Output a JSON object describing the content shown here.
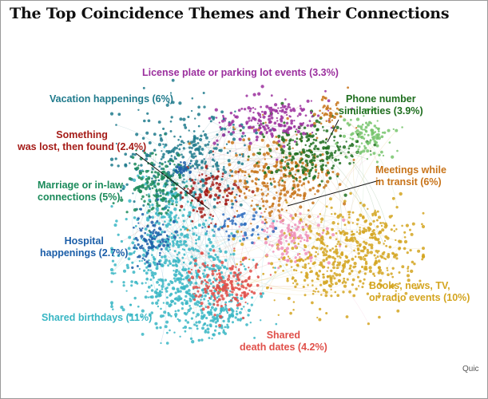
{
  "title": "The Top Coincidence Themes and Their Connections",
  "credit": "Quic",
  "themes": [
    {
      "key": "license",
      "lines": [
        "License plate or parking lot events (3.3%)"
      ],
      "color": "#9b2f9e",
      "align": "left"
    },
    {
      "key": "vacation",
      "lines": [
        "Vacation happenings (6%)"
      ],
      "color": "#1f7a8c",
      "align": "left"
    },
    {
      "key": "phone",
      "lines": [
        "Phone number",
        "similarities (3.9%)"
      ],
      "color": "#1e6e1e",
      "align": "center"
    },
    {
      "key": "lost",
      "lines": [
        "Something",
        "was lost, then found (2.4%)"
      ],
      "color": "#a51c18",
      "align": "center"
    },
    {
      "key": "meetings",
      "lines": [
        "Meetings while",
        "in transit (6%)"
      ],
      "color": "#c8741a",
      "align": "left"
    },
    {
      "key": "marriage",
      "lines": [
        "Marriage or in-law",
        "connections (5%)"
      ],
      "color": "#1a8a5a",
      "align": "left"
    },
    {
      "key": "hospital",
      "lines": [
        "Hospital",
        "happenings (2.7%)"
      ],
      "color": "#1b5ea8",
      "align": "center"
    },
    {
      "key": "books",
      "lines": [
        "Books, news, TV,",
        "or radio events (10%)"
      ],
      "color": "#d4a520",
      "align": "left"
    },
    {
      "key": "birthdays",
      "lines": [
        "Shared birthdays (11%)"
      ],
      "color": "#38b6c4",
      "align": "left"
    },
    {
      "key": "death",
      "lines": [
        "Shared",
        "death dates (4.2%)"
      ],
      "color": "#e0504a",
      "align": "center"
    }
  ],
  "extra_colors": [
    "#f08fb8",
    "#2f6fc0",
    "#76c46c",
    "#c0c0c0"
  ]
}
